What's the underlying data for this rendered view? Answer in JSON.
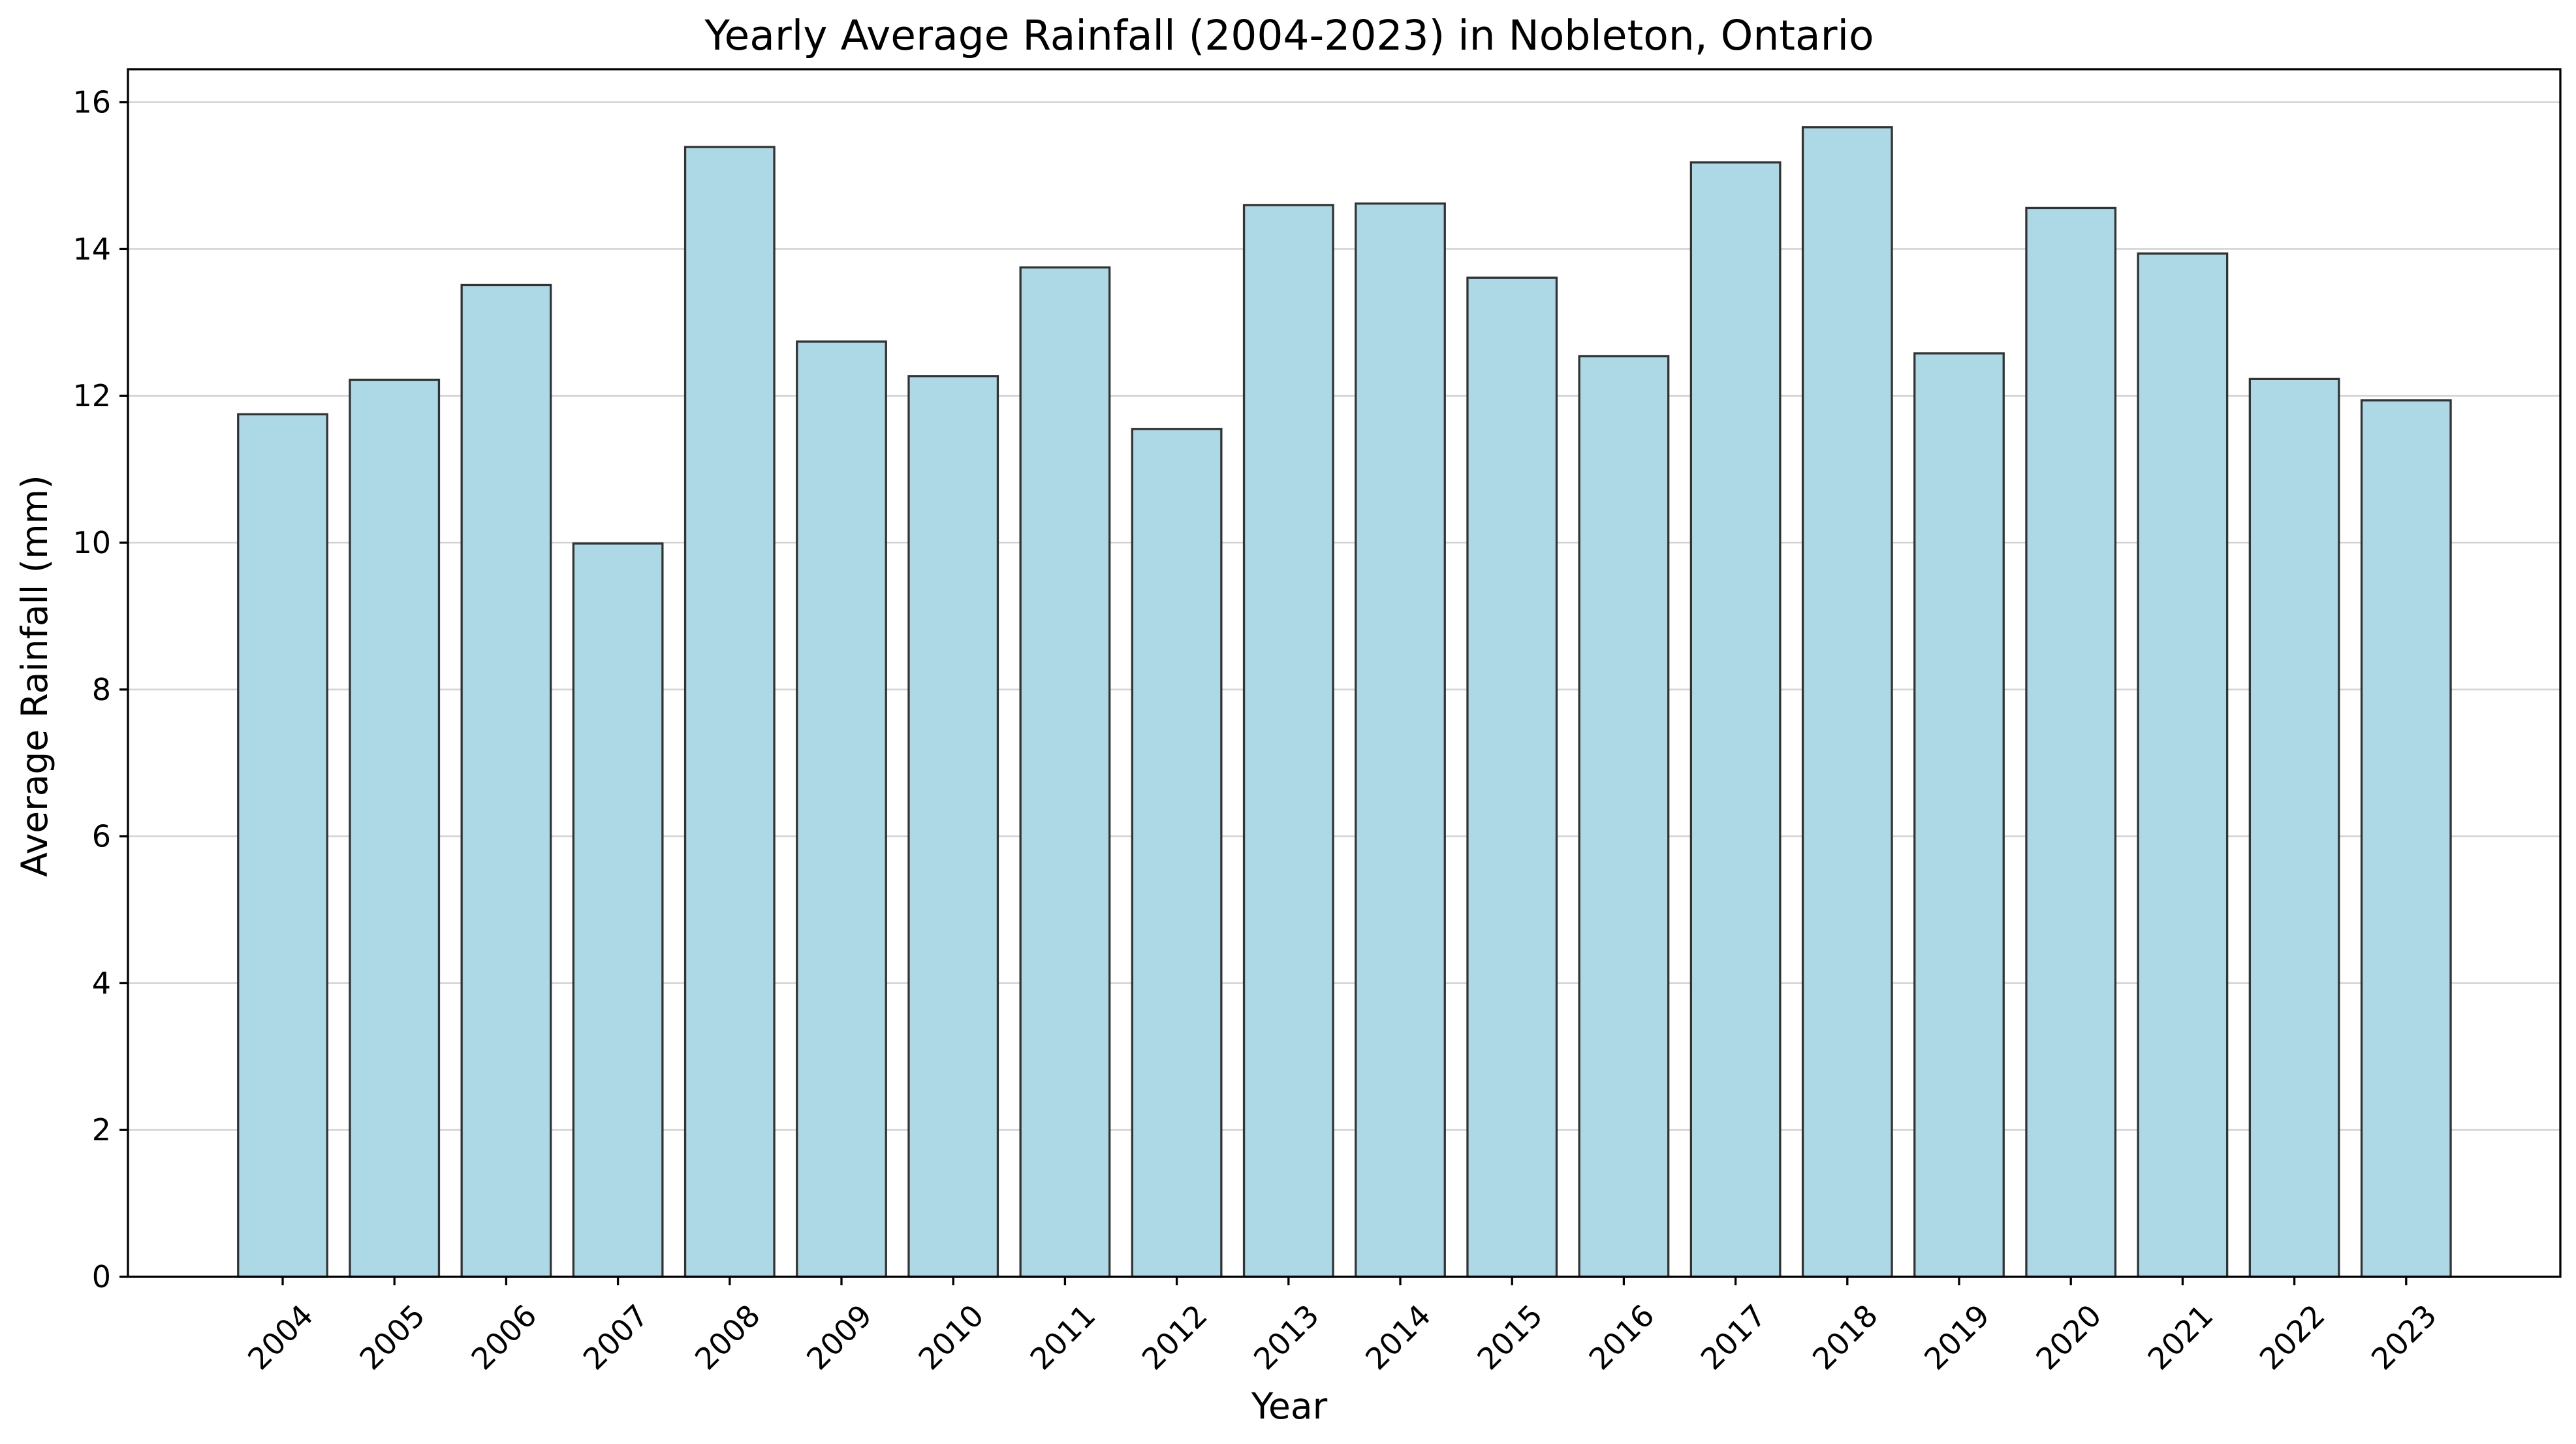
{
  "chart_data": {
    "type": "bar",
    "title": "Yearly Average Rainfall (2004-2023) in Nobleton, Ontario",
    "xlabel": "Year",
    "ylabel": "Average Rainfall (mm)",
    "categories": [
      "2004",
      "2005",
      "2006",
      "2007",
      "2008",
      "2009",
      "2010",
      "2011",
      "2012",
      "2013",
      "2014",
      "2015",
      "2016",
      "2017",
      "2018",
      "2019",
      "2020",
      "2021",
      "2022",
      "2023"
    ],
    "values": [
      11.75,
      12.22,
      13.51,
      9.99,
      15.39,
      12.74,
      12.27,
      13.75,
      11.55,
      14.6,
      14.62,
      13.61,
      12.54,
      15.18,
      15.66,
      12.58,
      14.56,
      13.94,
      12.23,
      11.94
    ],
    "ylim": [
      0,
      16.45
    ],
    "yticks": [
      0,
      2,
      4,
      6,
      8,
      10,
      12,
      14,
      16
    ],
    "ytick_labels": [
      "0",
      "2",
      "4",
      "6",
      "8",
      "10",
      "12",
      "14",
      "16"
    ],
    "grid": "horizontal",
    "xtick_rotation": 45,
    "colors": {
      "bar_fill": "#add8e6",
      "bar_edge": "#333333",
      "grid": "#cccccc"
    }
  }
}
